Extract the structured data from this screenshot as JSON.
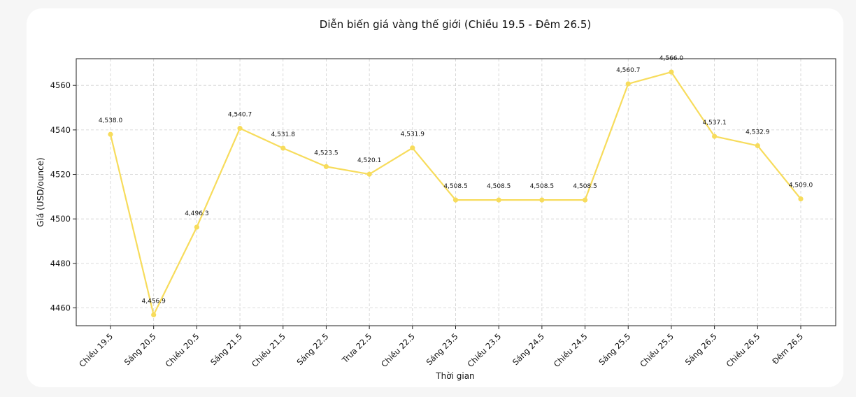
{
  "chart_data": {
    "type": "line",
    "title": "Diễn biến giá vàng thế giới (Chiều 19.5 - Đêm 26.5)",
    "xlabel": "Thời gian",
    "ylabel": "Giá (USD/ounce)",
    "ylim": [
      4452,
      4572
    ],
    "yticks": [
      4460,
      4480,
      4500,
      4520,
      4540,
      4560
    ],
    "grid": true,
    "categories": [
      "Chiều 19.5",
      "Sáng 20.5",
      "Chiều 20.5",
      "Sáng 21.5",
      "Chiều 21.5",
      "Sáng 22.5",
      "Trưa 22.5",
      "Chiều 22.5",
      "Sáng 23.5",
      "Chiều 23.5",
      "Sáng 24.5",
      "Chiều 24.5",
      "Sáng 25.5",
      "Chiều 25.5",
      "Sáng 26.5",
      "Chiều 26.5",
      "Đêm 26.5"
    ],
    "series": [
      {
        "values": [
          4538.0,
          4456.9,
          4496.3,
          4540.7,
          4531.8,
          4523.5,
          4520.1,
          4531.9,
          4508.5,
          4508.5,
          4508.5,
          4508.5,
          4560.7,
          4566.0,
          4537.1,
          4532.9,
          4509.0
        ],
        "labels": [
          "4,538.0",
          "4,456.9",
          "4,496.3",
          "4,540.7",
          "4,531.8",
          "4,523.5",
          "4,520.1",
          "4,531.9",
          "4,508.5",
          "4,508.5",
          "4,508.5",
          "4,508.5",
          "4,560.7",
          "4,566.0",
          "4,537.1",
          "4,532.9",
          "4,509.0"
        ],
        "color": "#f7dc5c"
      }
    ]
  }
}
